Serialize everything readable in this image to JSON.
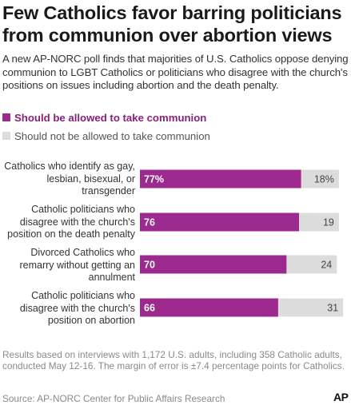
{
  "title": "Few Catholics favor barring politicians from communion over abortion views",
  "subtitle": "A new AP-NORC poll finds that majorities of U.S. Catholics oppose denying communion to LGBT Catholics or politicians who disagree with the church's positions on issues including abortion and the death penalty.",
  "footnote": "Results based on interviews with 1,172 U.S. adults, including 358 Catholic adults, conducted May 12-16. The margin of error is ±7.4 percentage points for Catholics.",
  "source": "Source: AP-NORC Center for Public Affairs Research",
  "logo": "AP",
  "colors": {
    "primary": "#9c2a8e",
    "secondary": "#dcdcdc"
  },
  "chart_data": {
    "type": "bar",
    "orientation": "horizontal",
    "stacked": true,
    "categories": [
      "Catholics who identify as gay, lesbian, bisexual, or transgender",
      "Catholic politicians who disagree with the church's position on the death penalty",
      "Divorced Catholics who remarry without getting an annulment",
      "Catholic politicians who disagree with the church's position on abortion"
    ],
    "series": [
      {
        "name": "Should be allowed to take communion",
        "values": [
          77,
          76,
          70,
          66
        ],
        "labels": [
          "77%",
          "76",
          "70",
          "66"
        ],
        "color": "#9c2a8e"
      },
      {
        "name": "Should not be allowed to take communion",
        "values": [
          18,
          19,
          24,
          31
        ],
        "labels": [
          "18%",
          "19",
          "24",
          "31"
        ],
        "color": "#dcdcdc"
      }
    ],
    "xlim": [
      0,
      100
    ],
    "grid": false,
    "legend": "top-left"
  }
}
